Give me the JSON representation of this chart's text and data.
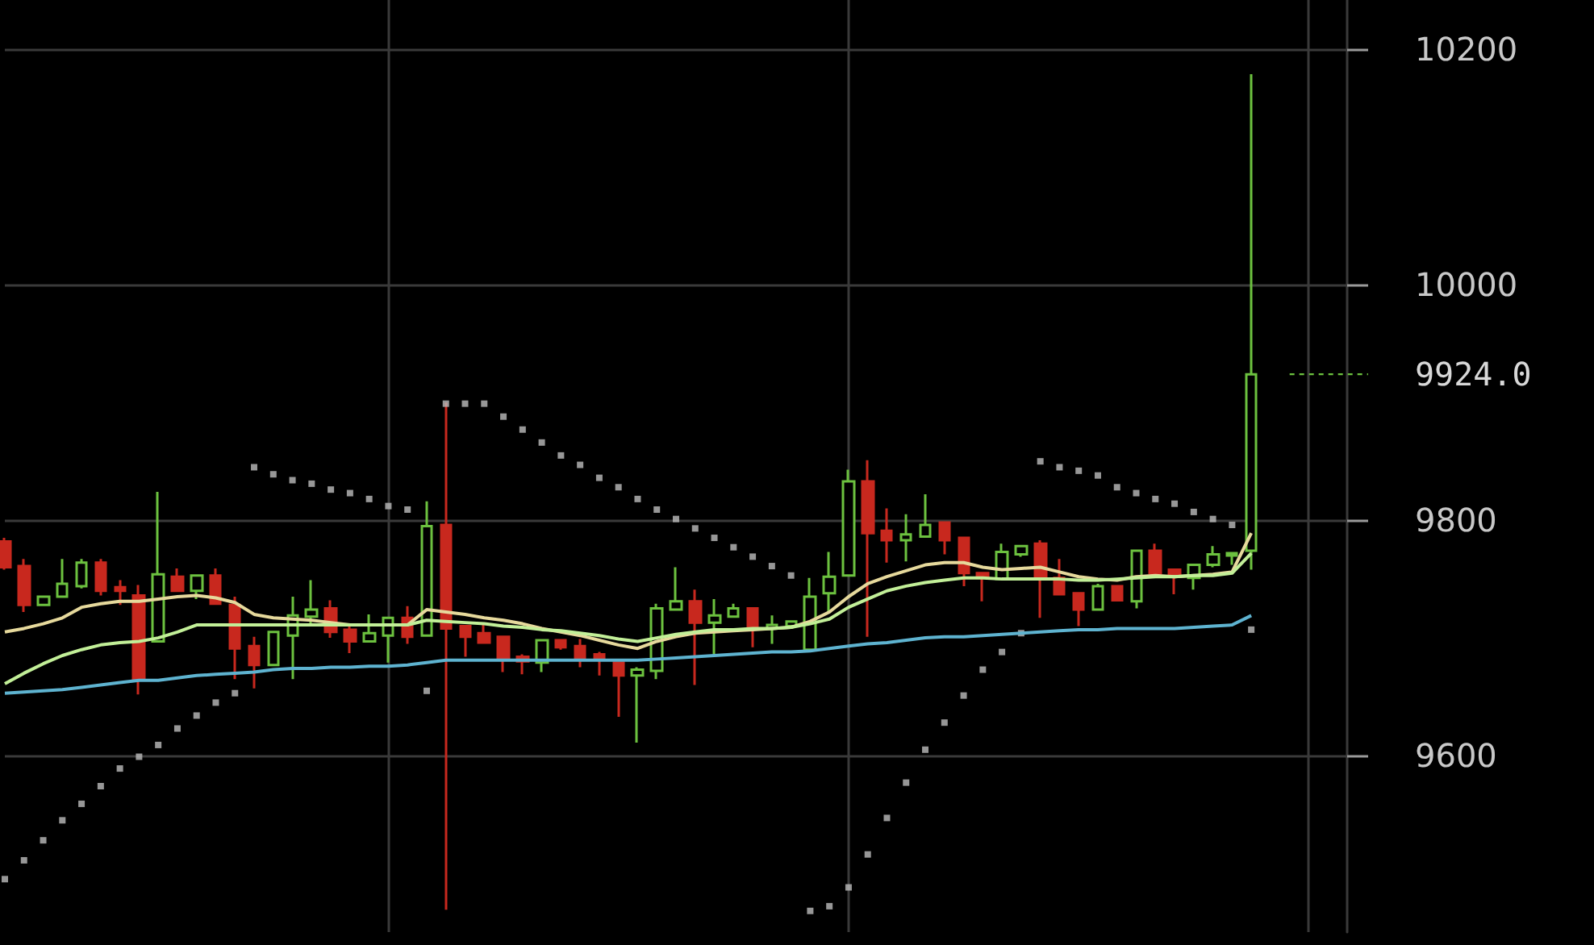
{
  "chart_data": {
    "type": "candlestick",
    "categories": [
      null,
      null,
      null,
      null,
      null,
      null,
      null,
      null,
      null,
      null,
      null,
      null,
      null,
      null,
      null,
      null,
      null,
      null,
      null,
      null,
      null,
      null,
      null,
      null,
      null,
      null,
      null,
      null,
      null,
      null,
      null,
      null,
      null,
      null,
      null,
      null,
      null,
      null,
      null,
      null,
      null,
      null,
      null,
      null,
      null,
      null,
      null,
      null,
      null,
      null,
      null,
      null,
      null,
      null,
      null,
      null,
      null,
      null,
      null,
      null,
      null,
      null,
      null,
      null,
      null,
      null
    ],
    "ohlc": [
      [
        9782,
        9785,
        9758,
        9760
      ],
      [
        9761,
        9767,
        9722,
        9728
      ],
      [
        9728,
        9736,
        9727,
        9735
      ],
      [
        9735,
        9767,
        9734,
        9746
      ],
      [
        9744,
        9767,
        9742,
        9764
      ],
      [
        9764,
        9767,
        9736,
        9740
      ],
      [
        9743,
        9749,
        9728,
        9740
      ],
      [
        9736,
        9745,
        9652,
        9665
      ],
      [
        9697,
        9824,
        9697,
        9754
      ],
      [
        9752,
        9759,
        9740,
        9740
      ],
      [
        9740,
        9754,
        9733,
        9753
      ],
      [
        9753,
        9759,
        9728,
        9729
      ],
      [
        9728,
        9735,
        9665,
        9691
      ],
      [
        9693,
        9701,
        9657,
        9677
      ],
      [
        9677,
        9705,
        9676,
        9705
      ],
      [
        9702,
        9735,
        9665,
        9719
      ],
      [
        9718,
        9749,
        9710,
        9724
      ],
      [
        9725,
        9732,
        9700,
        9705
      ],
      [
        9707,
        9710,
        9687,
        9697
      ],
      [
        9697,
        9720,
        9696,
        9704
      ],
      [
        9702,
        9718,
        9679,
        9717
      ],
      [
        9717,
        9727,
        9695,
        9701
      ],
      [
        9702,
        9816,
        9701,
        9795
      ],
      [
        9796,
        9900,
        9469,
        9708
      ],
      [
        9710,
        9710,
        9684,
        9701
      ],
      [
        9704,
        9713,
        9695,
        9696
      ],
      [
        9701,
        9701,
        9671,
        9683
      ],
      [
        9684,
        9686,
        9669,
        9680
      ],
      [
        9679,
        9698,
        9671,
        9698
      ],
      [
        9698,
        9699,
        9690,
        9692
      ],
      [
        9693,
        9699,
        9675,
        9683
      ],
      [
        9686,
        9688,
        9668,
        9683
      ],
      [
        9679,
        9679,
        9633,
        9668
      ],
      [
        9668,
        9675,
        9611,
        9673
      ],
      [
        9672,
        9729,
        9665,
        9725
      ],
      [
        9724,
        9760,
        9723,
        9731
      ],
      [
        9731,
        9741,
        9660,
        9713
      ],
      [
        9713,
        9733,
        9686,
        9719
      ],
      [
        9718,
        9729,
        9717,
        9725
      ],
      [
        9725,
        9725,
        9692,
        9710
      ],
      [
        9708,
        9719,
        9695,
        9711
      ],
      [
        9710,
        9714,
        9708,
        9714
      ],
      [
        9690,
        9751,
        9690,
        9735
      ],
      [
        9738,
        9773,
        9722,
        9752
      ],
      [
        9753,
        9843,
        9753,
        9833
      ],
      [
        9833,
        9851,
        9701,
        9789
      ],
      [
        9791,
        9810,
        9764,
        9783
      ],
      [
        9783,
        9805,
        9765,
        9788
      ],
      [
        9786,
        9822,
        9786,
        9796
      ],
      [
        9798,
        9798,
        9771,
        9783
      ],
      [
        9785,
        9785,
        9744,
        9755
      ],
      [
        9755,
        9756,
        9731,
        9751
      ],
      [
        9750,
        9780,
        9749,
        9773
      ],
      [
        9771,
        9778,
        9769,
        9778
      ],
      [
        9780,
        9783,
        9717,
        9751
      ],
      [
        9751,
        9767,
        9737,
        9737
      ],
      [
        9738,
        9738,
        9710,
        9724
      ],
      [
        9724,
        9746,
        9723,
        9744
      ],
      [
        9744,
        9744,
        9732,
        9732
      ],
      [
        9731,
        9774,
        9725,
        9774
      ],
      [
        9774,
        9780,
        9753,
        9755
      ],
      [
        9758,
        9758,
        9737,
        9753
      ],
      [
        9751,
        9762,
        9741,
        9762
      ],
      [
        9762,
        9778,
        9760,
        9771
      ],
      [
        9770,
        9773,
        9762,
        9772
      ],
      [
        9774,
        10179,
        9758,
        9924
      ]
    ],
    "colors": [
      "#c8281e",
      "#c8281e",
      "#6cc13f",
      "#6cc13f",
      "#6cc13f",
      "#c8281e",
      "#c8281e",
      "#c8281e",
      "#6cc13f",
      "#c8281e",
      "#6cc13f",
      "#c8281e",
      "#c8281e",
      "#c8281e",
      "#6cc13f",
      "#6cc13f",
      "#6cc13f",
      "#c8281e",
      "#c8281e",
      "#6cc13f",
      "#6cc13f",
      "#c8281e",
      "#6cc13f",
      "#c8281e",
      "#c8281e",
      "#c8281e",
      "#c8281e",
      "#c8281e",
      "#6cc13f",
      "#c8281e",
      "#c8281e",
      "#c8281e",
      "#c8281e",
      "#6cc13f",
      "#6cc13f",
      "#6cc13f",
      "#c8281e",
      "#6cc13f",
      "#6cc13f",
      "#c8281e",
      "#6cc13f",
      "#6cc13f",
      "#6cc13f",
      "#6cc13f",
      "#6cc13f",
      "#c8281e",
      "#c8281e",
      "#6cc13f",
      "#6cc13f",
      "#c8281e",
      "#c8281e",
      "#c8281e",
      "#6cc13f",
      "#6cc13f",
      "#c8281e",
      "#c8281e",
      "#c8281e",
      "#6cc13f",
      "#c8281e",
      "#6cc13f",
      "#c8281e",
      "#c8281e",
      "#6cc13f",
      "#6cc13f",
      "#6cc13f",
      "#6cc13f"
    ],
    "series": [
      {
        "type": "line",
        "color": "#e6d99c",
        "values": [
          9705,
          9708,
          9712,
          9717,
          9726,
          9729,
          9731,
          9731,
          9733,
          9735,
          9736,
          9734,
          9730,
          9720,
          9717,
          9716,
          9715,
          9713,
          9711,
          9711,
          9711,
          9711,
          9724,
          9722,
          9720,
          9717,
          9715,
          9712,
          9708,
          9705,
          9702,
          9698,
          9694,
          9691,
          9697,
          9701,
          9704,
          9705,
          9706,
          9707,
          9708,
          9709,
          9714,
          9722,
          9735,
          9746,
          9752,
          9757,
          9762,
          9764,
          9764,
          9760,
          9758,
          9759,
          9760,
          9756,
          9752,
          9750,
          9749,
          9752,
          9753,
          9752,
          9753,
          9754,
          9756,
          9789
        ]
      },
      {
        "type": "line",
        "color": "#c2ef98",
        "values": [
          9661,
          9670,
          9678,
          9685,
          9690,
          9694,
          9696,
          9697,
          9700,
          9705,
          9711,
          9711,
          9711,
          9711,
          9711,
          9711,
          9711,
          9711,
          9711,
          9711,
          9711,
          9711,
          9715,
          9714,
          9713,
          9712,
          9710,
          9709,
          9707,
          9706,
          9704,
          9702,
          9699,
          9697,
          9700,
          9703,
          9705,
          9707,
          9707,
          9708,
          9708,
          9709,
          9712,
          9716,
          9726,
          9733,
          9740,
          9744,
          9747,
          9749,
          9751,
          9751,
          9750,
          9750,
          9750,
          9750,
          9749,
          9749,
          9750,
          9751,
          9752,
          9752,
          9753,
          9753,
          9755,
          9772
        ]
      },
      {
        "type": "line",
        "color": "#5eb3d0",
        "values": [
          9653,
          9654,
          9655,
          9656,
          9658,
          9660,
          9662,
          9664,
          9664,
          9666,
          9668,
          9669,
          9670,
          9671,
          9673,
          9674,
          9674,
          9675,
          9675,
          9676,
          9676,
          9677,
          9679,
          9681,
          9681,
          9681,
          9681,
          9681,
          9681,
          9681,
          9681,
          9681,
          9681,
          9681,
          9682,
          9683,
          9684,
          9685,
          9686,
          9687,
          9688,
          9688,
          9689,
          9691,
          9693,
          9695,
          9696,
          9698,
          9700,
          9701,
          9701,
          9702,
          9703,
          9704,
          9705,
          9706,
          9707,
          9707,
          9708,
          9708,
          9708,
          9708,
          9709,
          9710,
          9711,
          9719
        ]
      },
      {
        "type": "scatter",
        "color": "#bdbdbd",
        "marker": "square",
        "values": [
          9495,
          9511,
          9528,
          9545,
          9559,
          9574,
          9589,
          9599,
          9609,
          9623,
          9634,
          9645,
          9653,
          9845,
          9839,
          9834,
          9831,
          9826,
          9823,
          9818,
          9812,
          9809,
          9655,
          9899,
          9899,
          9899,
          9888,
          9877,
          9866,
          9855,
          9847,
          9836,
          9828,
          9818,
          9809,
          9801,
          9793,
          9785,
          9777,
          9769,
          9761,
          9753,
          9468,
          9472,
          9488,
          9516,
          9547,
          9577,
          9605,
          9628,
          9651,
          9673,
          9688,
          9704,
          9850,
          9845,
          9842,
          9838,
          9828,
          9823,
          9818,
          9814,
          9807,
          9801,
          9796,
          9707
        ]
      }
    ],
    "ref_lines": [
      {
        "axis": "y",
        "value": 9924,
        "label": "9924.0",
        "color": "#6cc13f",
        "line_style": "dashed"
      }
    ],
    "ylim": [
      9450,
      10242
    ],
    "yticks": [
      9600,
      9800,
      10000,
      10200
    ],
    "grid": true
  }
}
